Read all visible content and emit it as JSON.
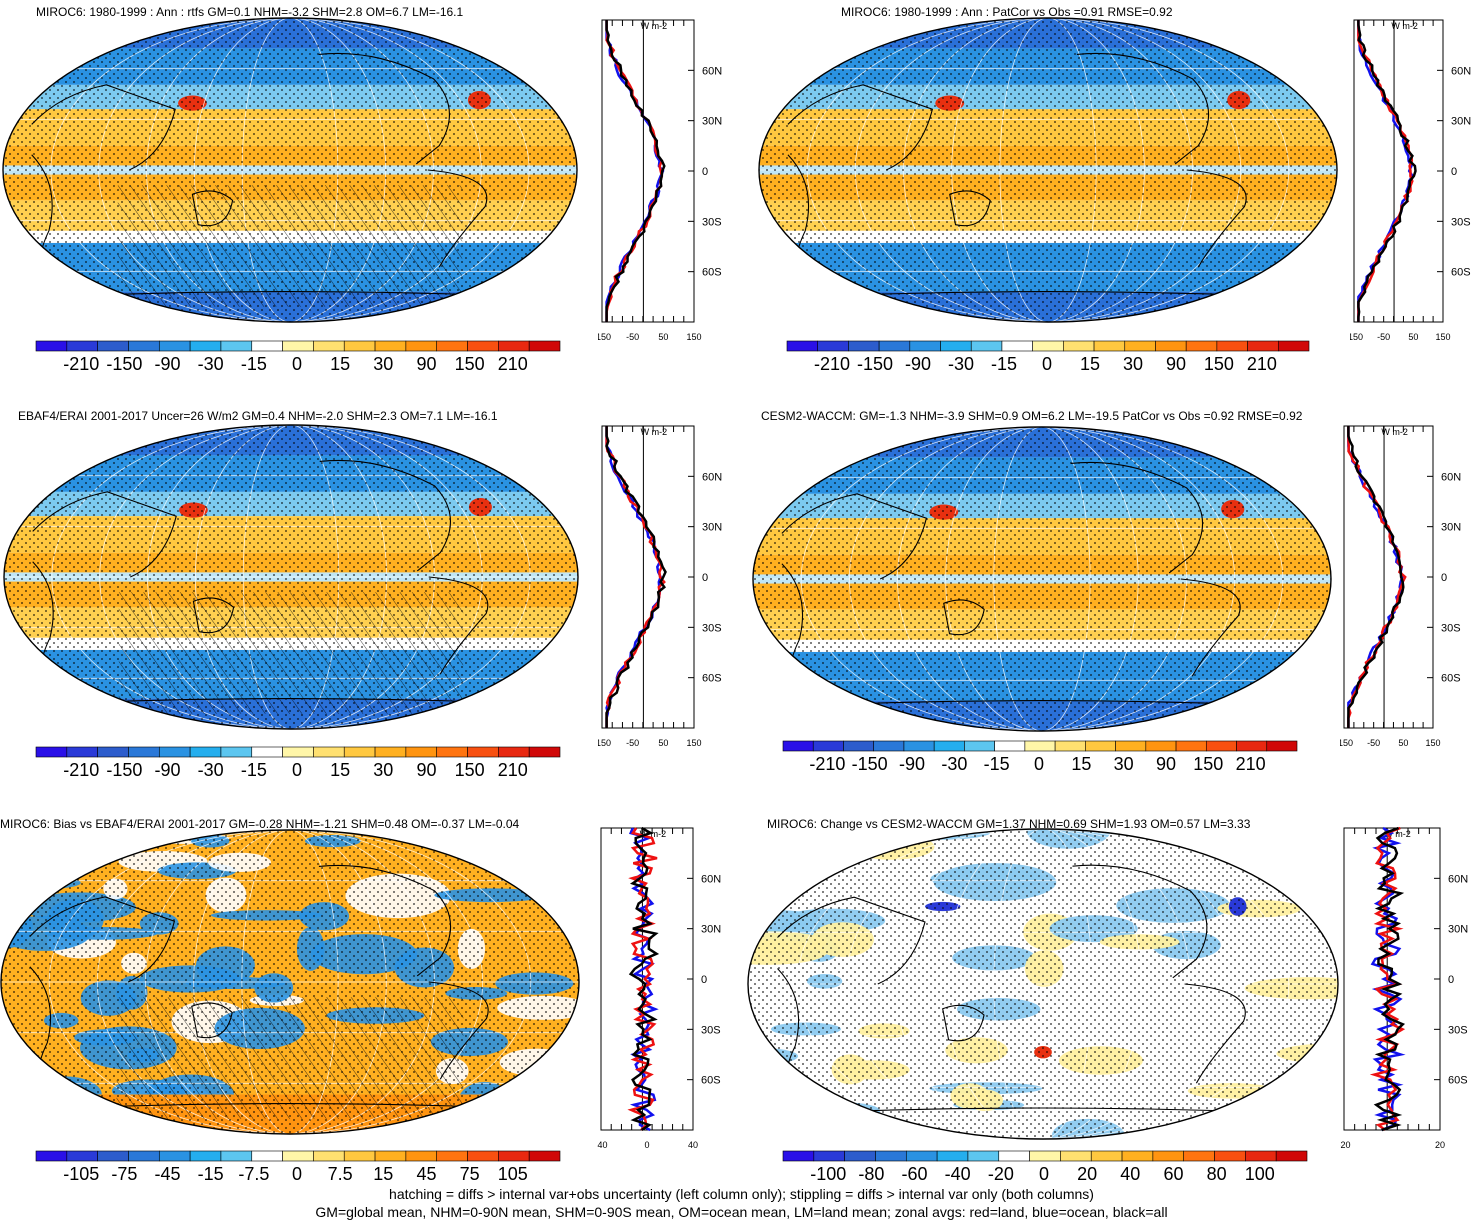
{
  "panels": [
    {
      "id": "p1",
      "title": "MIROC6: 1980-1999 : Ann : rtfs GM=0.1 NHM=-3.2 SHM=2.8 OM=6.7 LM=-16.1",
      "colorbar_labels": [
        "-210",
        "-150",
        "-90",
        "-30",
        "-15",
        "0",
        "15",
        "30",
        "90",
        "150",
        "210"
      ],
      "zonal_unit": "W m-2",
      "zonal_ticks": [
        "-150",
        "-50",
        "50",
        "150"
      ],
      "lat_labels": [
        "60N",
        "30N",
        "0",
        "30S",
        "60S"
      ],
      "pattern": "mean",
      "hatching": true
    },
    {
      "id": "p2",
      "title": "MIROC6: 1980-1999 : Ann : PatCor vs Obs =0.91 RMSE=0.92",
      "colorbar_labels": [
        "-210",
        "-150",
        "-90",
        "-30",
        "-15",
        "0",
        "15",
        "30",
        "90",
        "150",
        "210"
      ],
      "zonal_unit": "W m-2",
      "zonal_ticks": [
        "-150",
        "-50",
        "50",
        "150"
      ],
      "lat_labels": [
        "60N",
        "30N",
        "0",
        "30S",
        "60S"
      ],
      "pattern": "mean",
      "hatching": false
    },
    {
      "id": "p3",
      "title": "EBAF4/ERAI 2001-2017 Uncer=26 W/m2 GM=0.4 NHM=-2.0 SHM=2.3 OM=7.1 LM=-16.1",
      "colorbar_labels": [
        "-210",
        "-150",
        "-90",
        "-30",
        "-15",
        "0",
        "15",
        "30",
        "90",
        "150",
        "210"
      ],
      "zonal_unit": "W m-2",
      "zonal_ticks": [
        "-150",
        "-50",
        "50",
        "150"
      ],
      "lat_labels": [
        "60N",
        "30N",
        "0",
        "30S",
        "60S"
      ],
      "pattern": "mean",
      "hatching": true
    },
    {
      "id": "p4",
      "title": "CESM2-WACCM: GM=-1.3 NHM=-3.9 SHM=0.9 OM=6.2 LM=-19.5 PatCor vs Obs =0.92 RMSE=0.92",
      "colorbar_labels": [
        "-210",
        "-150",
        "-90",
        "-30",
        "-15",
        "0",
        "15",
        "30",
        "90",
        "150",
        "210"
      ],
      "zonal_unit": "W m-2",
      "zonal_ticks": [
        "-150",
        "-50",
        "50",
        "150"
      ],
      "lat_labels": [
        "60N",
        "30N",
        "0",
        "30S",
        "60S"
      ],
      "pattern": "mean",
      "hatching": false
    },
    {
      "id": "p5",
      "title": "MIROC6: Bias vs EBAF4/ERAI 2001-2017 GM=-0.28 NHM=-1.21 SHM=0.48 OM=-0.37 LM=-0.04",
      "colorbar_labels": [
        "-105",
        "-75",
        "-45",
        "-15",
        "-7.5",
        "0",
        "7.5",
        "15",
        "45",
        "75",
        "105"
      ],
      "zonal_unit": "W m-2",
      "zonal_ticks": [
        "-40",
        "0",
        "40"
      ],
      "lat_labels": [
        "60N",
        "30N",
        "0",
        "30S",
        "60S"
      ],
      "pattern": "bias",
      "hatching": true
    },
    {
      "id": "p6",
      "title": "MIROC6: Change vs CESM2-WACCM GM=1.37 NHM=0.69 SHM=1.93 OM=0.57 LM=3.33",
      "colorbar_labels": [
        "-100",
        "-80",
        "-60",
        "-40",
        "-20",
        "0",
        "20",
        "40",
        "60",
        "80",
        "100"
      ],
      "zonal_unit": "W m-2",
      "zonal_ticks": [
        "-20",
        "20"
      ],
      "lat_labels": [
        "60N",
        "30N",
        "0",
        "30S",
        "60S"
      ],
      "pattern": "change",
      "hatching": false
    }
  ],
  "footer": {
    "line1": "hatching = diffs > internal var+obs uncertainty (left column only); stippling = diffs > internal var only (both columns)",
    "line2": "GM=global mean, NHM=0-90N mean, SHM=0-90S mean, OM=ocean mean, LM=land mean; zonal avgs: red=land, blue=ocean, black=all"
  },
  "colors": {
    "colorbar": [
      "#2a10e8",
      "#2a3ad8",
      "#2c5ccc",
      "#2a78d8",
      "#2a92e2",
      "#24aeee",
      "#5cc6f0",
      "#ffffff",
      "#fff6a8",
      "#ffe070",
      "#ffc840",
      "#ffb020",
      "#ff9410",
      "#ff7410",
      "#f85010",
      "#e82810",
      "#d00808"
    ],
    "land_zonal": "#ee1111",
    "ocean_zonal": "#1111ee",
    "all_zonal": "#000000"
  }
}
